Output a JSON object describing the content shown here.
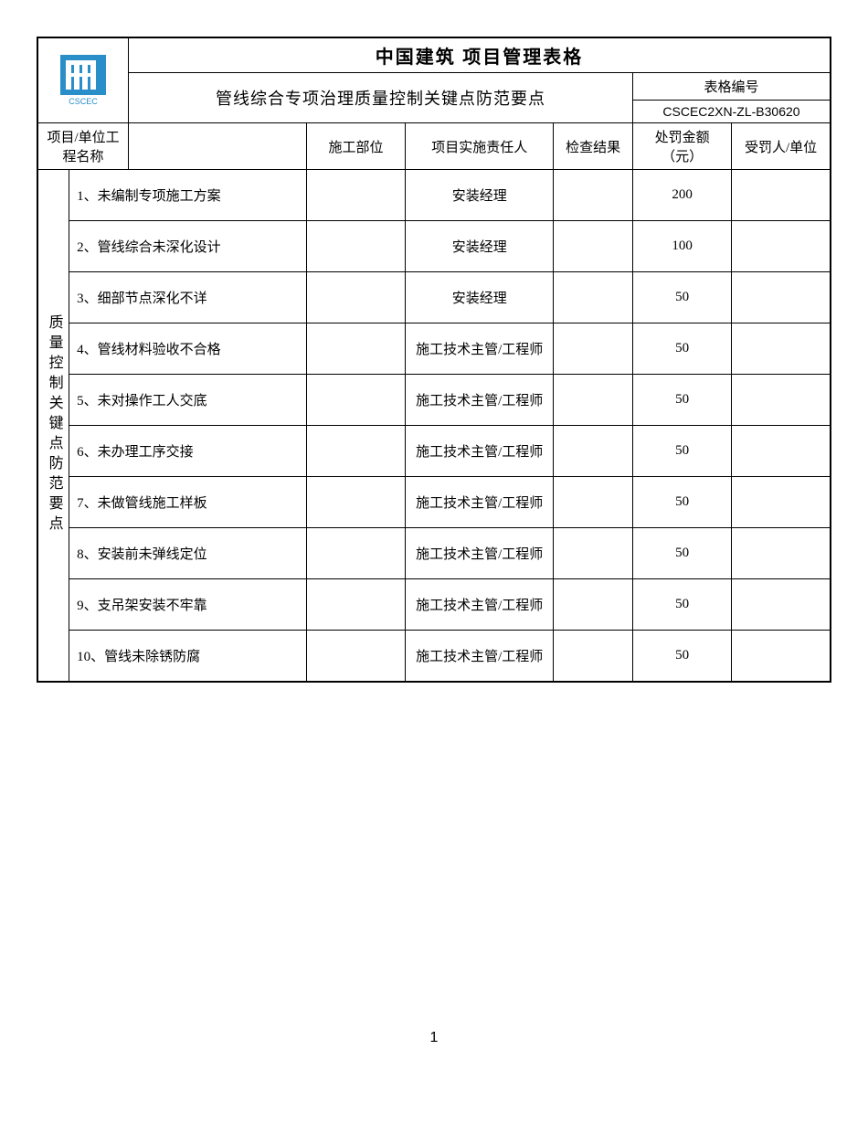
{
  "logo_color": "#2a8fc9",
  "title": "中国建筑 项目管理表格",
  "subtitle": "管线综合专项治理质量控制关键点防范要点",
  "form_number_label": "表格编号",
  "form_number": "CSCEC2XN-ZL-B30620",
  "headers": {
    "project_name": "项目/单位工程名称",
    "construction_part": "施工部位",
    "responsible": "项目实施责任人",
    "check_result": "检查结果",
    "penalty_amount": "处罚金额（元）",
    "penalized_unit": "受罚人/单位"
  },
  "section_label": "质量控制关键点防范要点",
  "rows": [
    {
      "item": "1、未编制专项施工方案",
      "part": "",
      "responsible": "安装经理",
      "result": "",
      "penalty": "200",
      "unit": ""
    },
    {
      "item": "2、管线综合未深化设计",
      "part": "",
      "responsible": "安装经理",
      "result": "",
      "penalty": "100",
      "unit": ""
    },
    {
      "item": "3、细部节点深化不详",
      "part": "",
      "responsible": "安装经理",
      "result": "",
      "penalty": "50",
      "unit": ""
    },
    {
      "item": "4、管线材料验收不合格",
      "part": "",
      "responsible": "施工技术主管/工程师",
      "result": "",
      "penalty": "50",
      "unit": ""
    },
    {
      "item": "5、未对操作工人交底",
      "part": "",
      "responsible": "施工技术主管/工程师",
      "result": "",
      "penalty": "50",
      "unit": ""
    },
    {
      "item": "6、未办理工序交接",
      "part": "",
      "responsible": "施工技术主管/工程师",
      "result": "",
      "penalty": "50",
      "unit": ""
    },
    {
      "item": "7、未做管线施工样板",
      "part": "",
      "responsible": "施工技术主管/工程师",
      "result": "",
      "penalty": "50",
      "unit": ""
    },
    {
      "item": "8、安装前未弹线定位",
      "part": "",
      "responsible": "施工技术主管/工程师",
      "result": "",
      "penalty": "50",
      "unit": ""
    },
    {
      "item": "9、支吊架安装不牢靠",
      "part": "",
      "responsible": "施工技术主管/工程师",
      "result": "",
      "penalty": "50",
      "unit": ""
    },
    {
      "item": "10、管线未除锈防腐",
      "part": "",
      "responsible": "施工技术主管/工程师",
      "result": "",
      "penalty": "50",
      "unit": ""
    }
  ],
  "page_number": "1"
}
